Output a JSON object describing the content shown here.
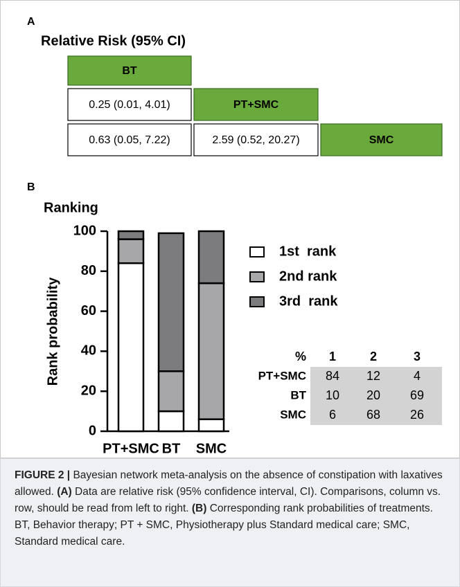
{
  "panel_a": {
    "label": "A",
    "title": "Relative Risk (95% CI)",
    "matrix": [
      [
        "BT"
      ],
      [
        "0.25 (0.01, 4.01)",
        "PT+SMC"
      ],
      [
        "0.63 (0.05, 7.22)",
        "2.59 (0.52, 20.27)",
        "SMC"
      ]
    ],
    "diagonal_color": "#6aaa3c"
  },
  "chart_data": {
    "type": "bar",
    "stacked": true,
    "panel_label": "B",
    "title": "Ranking",
    "ylabel": "Rank probability",
    "categories": [
      "PT+SMC",
      "BT",
      "SMC"
    ],
    "series": [
      {
        "name": "1st  rank",
        "color": "#ffffff",
        "values": [
          84,
          10,
          6
        ]
      },
      {
        "name": "2nd rank",
        "color": "#a7a7aa",
        "values": [
          12,
          20,
          68
        ]
      },
      {
        "name": "3rd  rank",
        "color": "#7c7c7e",
        "values": [
          4,
          69,
          26
        ]
      }
    ],
    "ylim": [
      0,
      100
    ],
    "yticks": [
      0,
      20,
      40,
      60,
      80,
      100
    ]
  },
  "rank_table": {
    "header": [
      "%",
      "1",
      "2",
      "3"
    ],
    "color": "#d3d3d3"
  },
  "caption": {
    "figure": "FIGURE 2 |",
    "text1": "Bayesian network meta-analysis on the absence of constipation with laxatives allowed.",
    "a": "(A)",
    "text2": "Data are relative risk (95% confidence interval, CI). Comparisons, column vs. row, should be read from left to right.",
    "b": "(B)",
    "text3": "Corresponding rank probabilities of treatments. BT, Behavior therapy; PT + SMC, Physiotherapy plus Standard medical care; SMC, Standard medical care."
  }
}
